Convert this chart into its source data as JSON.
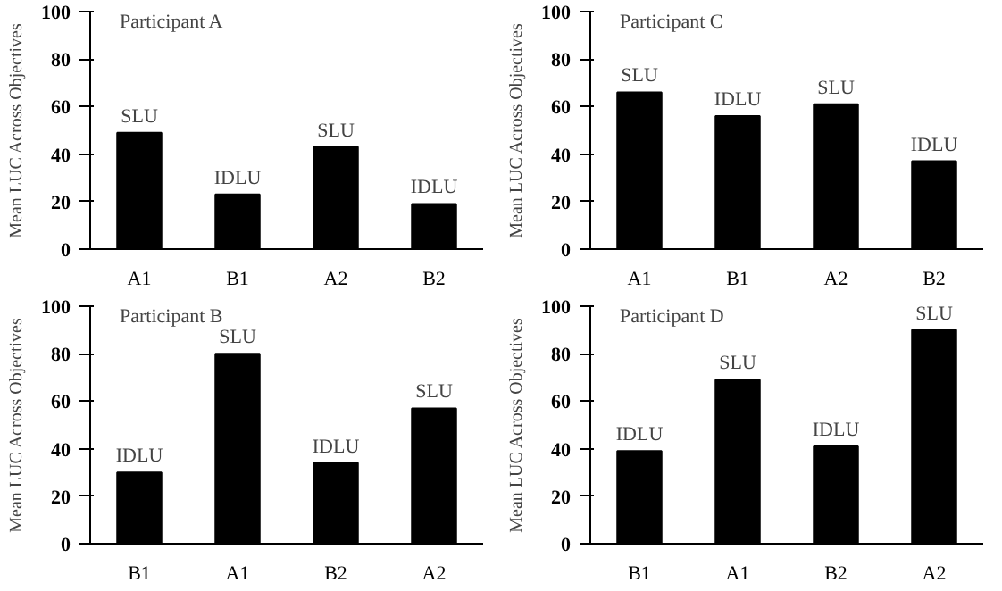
{
  "chart_data": [
    {
      "type": "bar",
      "title": "Participant A",
      "ylabel": "Mean LUC Across Objectives",
      "categories": [
        "A1",
        "B1",
        "A2",
        "B2"
      ],
      "values": [
        49,
        23,
        43,
        19
      ],
      "color": "#000000",
      "ylim": [
        0,
        100
      ],
      "yticks": [
        0,
        20,
        40,
        60,
        80,
        100
      ],
      "grid": false,
      "annotations": [
        {
          "text": "SLU",
          "x": "A1",
          "y": 49
        },
        {
          "text": "IDLU",
          "x": "B1",
          "y": 23
        },
        {
          "text": "SLU",
          "x": "A2",
          "y": 43
        },
        {
          "text": "IDLU",
          "x": "B2",
          "y": 19
        }
      ]
    },
    {
      "type": "bar",
      "title": "Participant C",
      "ylabel": "Mean LUC Across Objectives",
      "categories": [
        "A1",
        "B1",
        "A2",
        "B2"
      ],
      "values": [
        66,
        56,
        61,
        37
      ],
      "color": "#000000",
      "ylim": [
        0,
        100
      ],
      "yticks": [
        0,
        20,
        40,
        60,
        80,
        100
      ],
      "grid": false,
      "annotations": [
        {
          "text": "SLU",
          "x": "A1",
          "y": 66
        },
        {
          "text": "IDLU",
          "x": "B1",
          "y": 56
        },
        {
          "text": "SLU",
          "x": "A2",
          "y": 61
        },
        {
          "text": "IDLU",
          "x": "B2",
          "y": 37
        }
      ]
    },
    {
      "type": "bar",
      "title": "Participant  B",
      "ylabel": "Mean LUC Across Objectives",
      "categories": [
        "B1",
        "A1",
        "B2",
        "A2"
      ],
      "values": [
        30,
        80,
        34,
        57
      ],
      "color": "#000000",
      "ylim": [
        0,
        100
      ],
      "yticks": [
        0,
        20,
        40,
        60,
        80,
        100
      ],
      "grid": false,
      "annotations": [
        {
          "text": "IDLU",
          "x": "B1",
          "y": 30
        },
        {
          "text": "SLU",
          "x": "A1",
          "y": 80
        },
        {
          "text": "IDLU",
          "x": "B2",
          "y": 34
        },
        {
          "text": "SLU",
          "x": "A2",
          "y": 57
        }
      ]
    },
    {
      "type": "bar",
      "title": "Participant D",
      "ylabel": "Mean LUC Across Objectives",
      "categories": [
        "B1",
        "A1",
        "B2",
        "A2"
      ],
      "values": [
        39,
        69,
        41,
        90
      ],
      "color": "#000000",
      "ylim": [
        0,
        100
      ],
      "yticks": [
        0,
        20,
        40,
        60,
        80,
        100
      ],
      "grid": false,
      "annotations": [
        {
          "text": "IDLU",
          "x": "B1",
          "y": 39
        },
        {
          "text": "SLU",
          "x": "A1",
          "y": 69
        },
        {
          "text": "IDLU",
          "x": "B2",
          "y": 41
        },
        {
          "text": "SLU",
          "x": "A2",
          "y": 90
        }
      ]
    }
  ]
}
